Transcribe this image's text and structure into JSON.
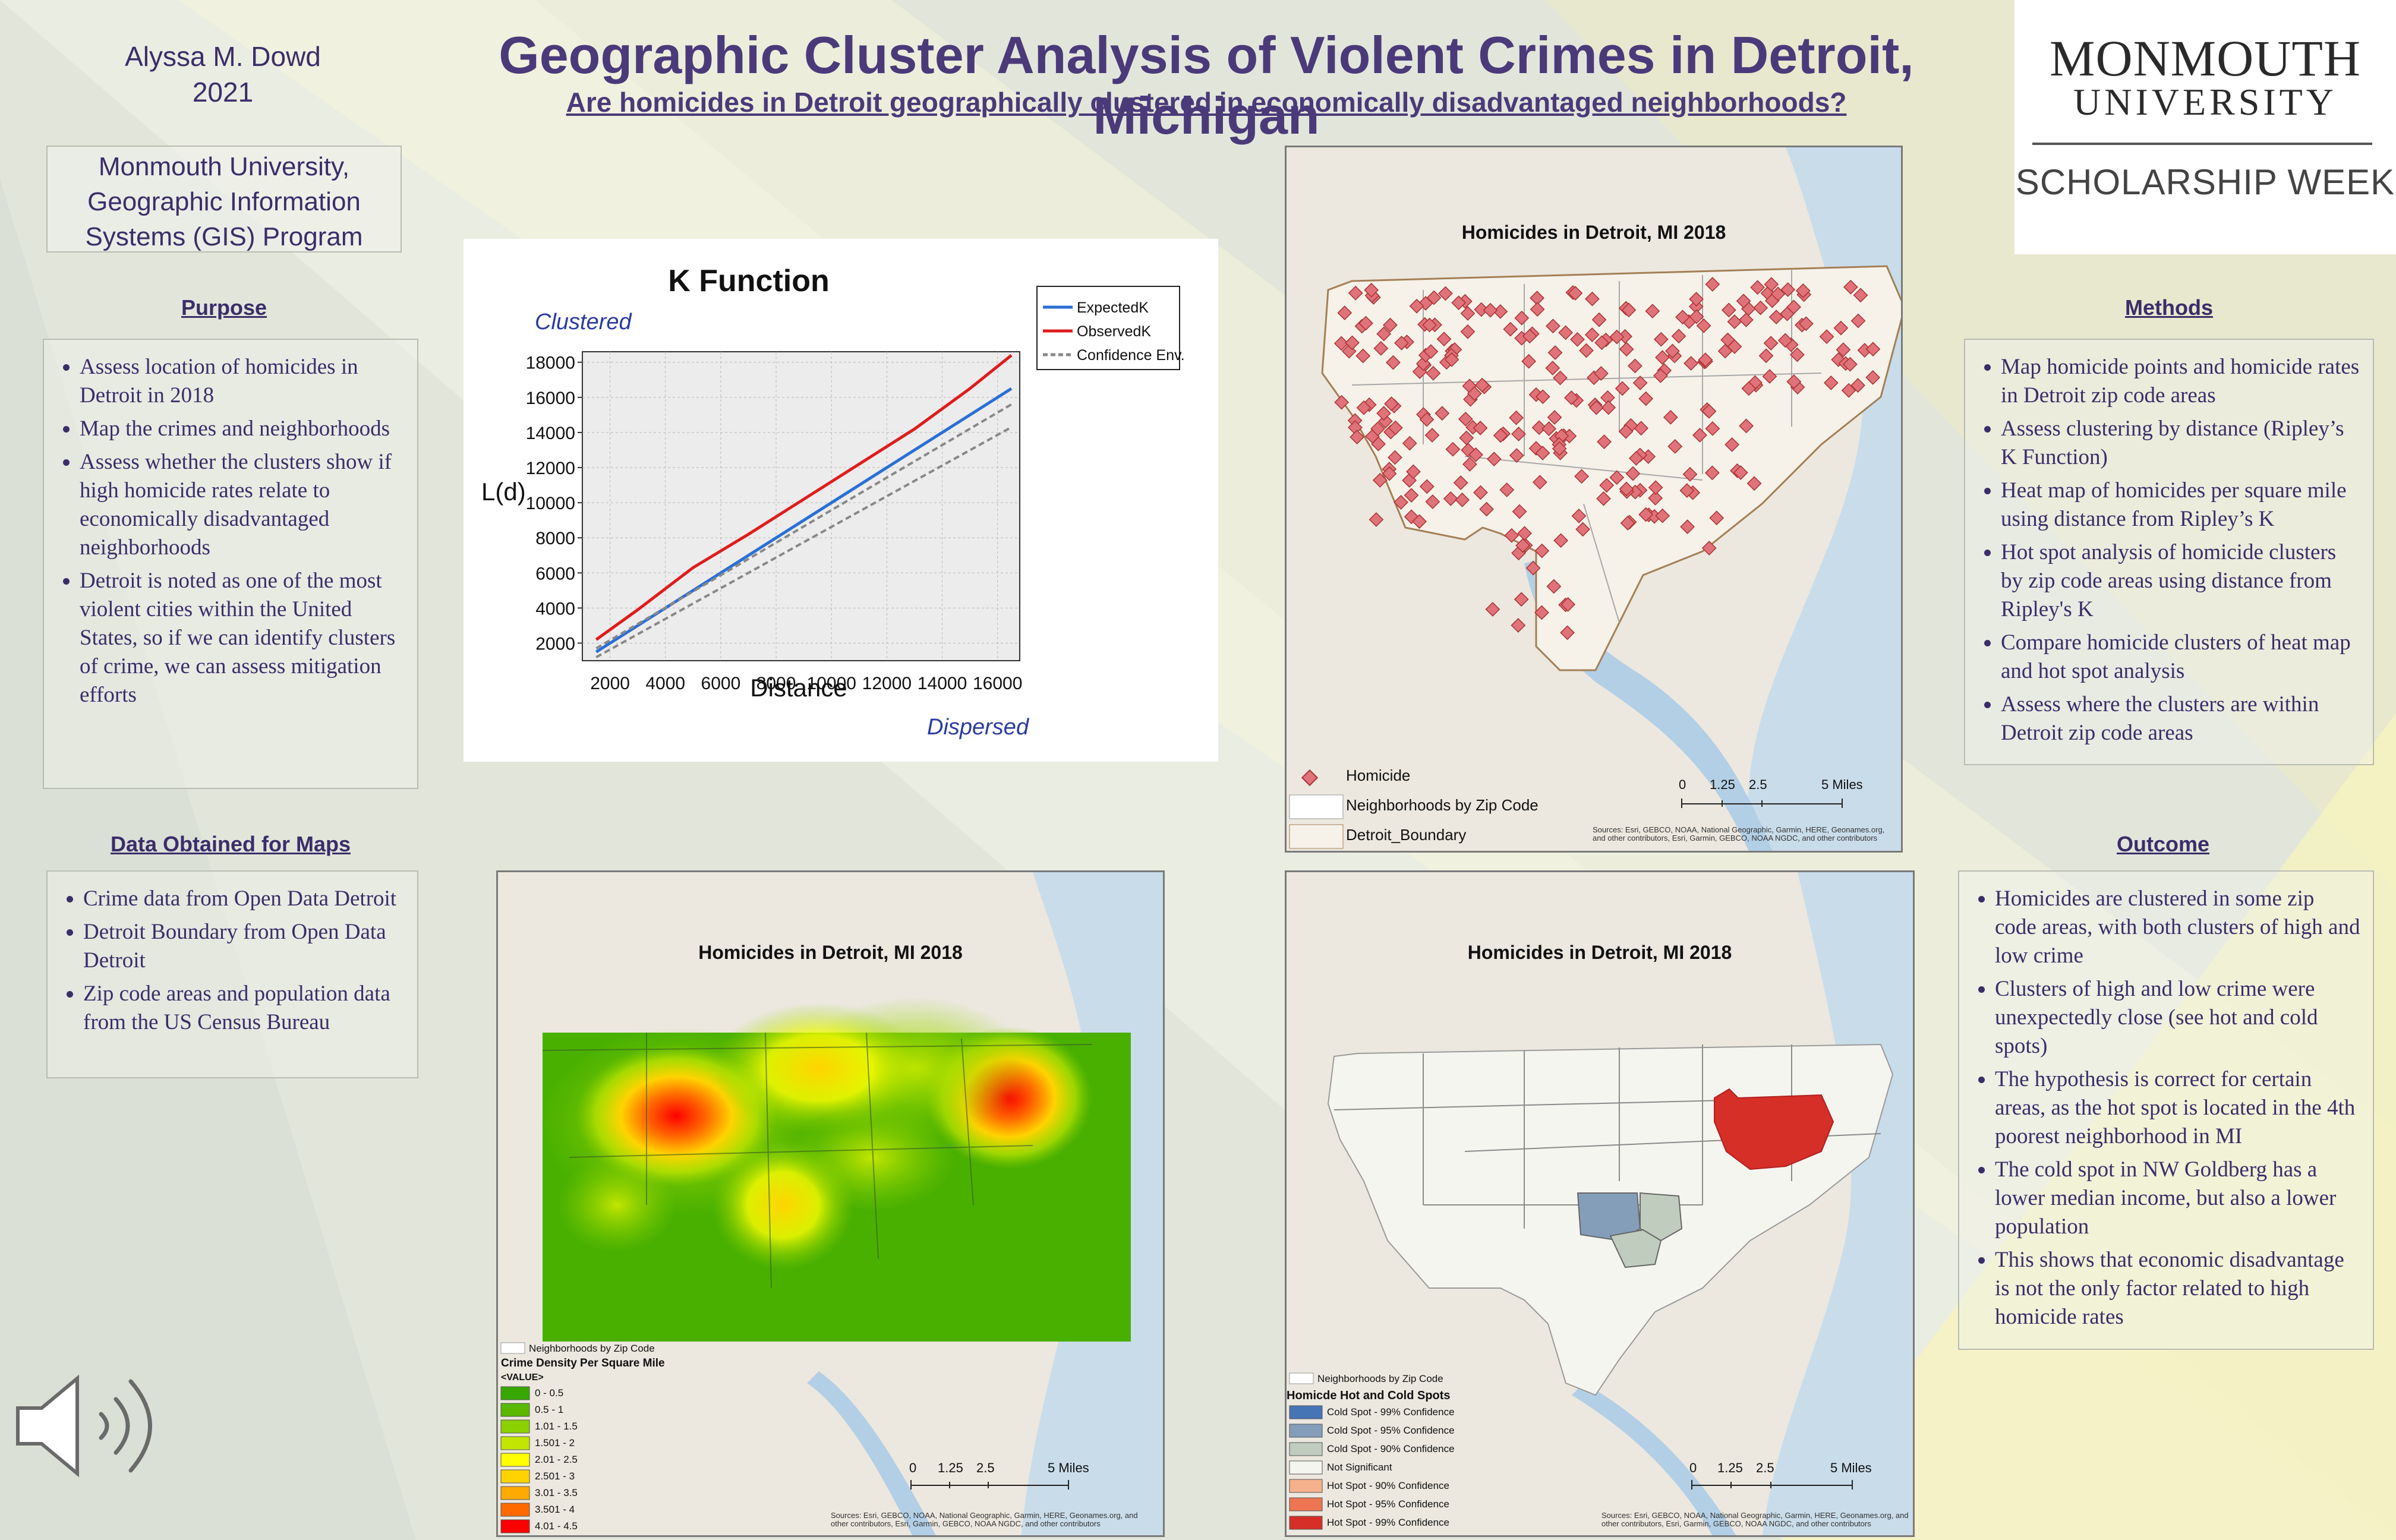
{
  "header": {
    "author_name": "Alyssa M. Dowd",
    "author_year": "2021",
    "title": "Geographic Cluster Analysis of Violent Crimes in Detroit, Michigan",
    "subtitle": "Are homicides in Detroit geographically clustered in economically disadvantaged neighborhoods?"
  },
  "logo": {
    "line1": "MONMOUTH",
    "line2": "UNIVERSITY",
    "line3": "SCHOLARSHIP WEEK"
  },
  "affiliation": {
    "line1": "Monmouth University,",
    "line2": "Geographic Information",
    "line3": "Systems (GIS) Program"
  },
  "purpose": {
    "heading": "Purpose",
    "items": [
      "Assess location of homicides in Detroit in 2018",
      "Map the crimes and neighborhoods",
      "Assess whether the clusters show if high homicide rates relate to economically disadvantaged neighborhoods",
      "Detroit is noted as one of the most violent cities within the United States, so if we can identify clusters of crime, we can assess mitigation efforts"
    ]
  },
  "data_obtained": {
    "heading": "Data Obtained  for Maps",
    "items": [
      "Crime data from  Open Data Detroit",
      "Detroit Boundary from  Open Data Detroit",
      "Zip code areas and population data from the US Census Bureau"
    ]
  },
  "methods": {
    "heading": "Methods",
    "items": [
      "Map homicide points and homicide rates in Detroit zip code areas",
      "Assess clustering by distance (Ripley’s K Function)",
      "Heat map of homicides per square mile using distance from Ripley’s K",
      "Hot spot analysis of homicide clusters by zip code areas using distance from Ripley's K",
      "Compare homicide clusters of heat map and hot spot analysis",
      "Assess where the clusters are within Detroit zip code areas"
    ]
  },
  "outcome": {
    "heading": "Outcome",
    "items": [
      "Homicides are clustered in some zip code areas, with both clusters of high and low crime",
      "Clusters of high and low crime were unexpectedly close (see hot and cold spots)",
      "The hypothesis is correct for certain areas, as the hot spot is located in the 4th poorest neighborhood in MI",
      "The cold spot in NW Goldberg has a lower median income, but also a lower population",
      "This shows that economic disadvantage is not the only factor related to high homicide rates"
    ]
  },
  "chart_data": {
    "type": "line",
    "title": "K Function",
    "xlabel": "Distance",
    "ylabel": "L(d)",
    "top_note": "Clustered",
    "bottom_note": "Dispersed",
    "xlim": [
      1000,
      16800
    ],
    "ylim": [
      1000,
      18600
    ],
    "x_ticks": [
      2000,
      4000,
      6000,
      8000,
      10000,
      12000,
      14000,
      16000
    ],
    "y_ticks": [
      2000,
      4000,
      6000,
      8000,
      10000,
      12000,
      14000,
      16000,
      18000
    ],
    "grid": true,
    "legend_position": "top-right",
    "series": [
      {
        "name": "ExpectedK",
        "color": "#2a6fd6",
        "x": [
          1500,
          16500
        ],
        "y": [
          1500,
          16500
        ]
      },
      {
        "name": "ObservedK",
        "color": "#e01c1c",
        "x": [
          1500,
          3000,
          5000,
          7000,
          9000,
          11000,
          13000,
          15000,
          16500
        ],
        "y": [
          2200,
          3900,
          6300,
          8200,
          10200,
          12200,
          14200,
          16500,
          18400
        ]
      },
      {
        "name": "Confidence Env.",
        "color": "#888888",
        "x": [
          1500,
          16500
        ],
        "y": [
          1200,
          14300
        ]
      },
      {
        "name": "Confidence Env.",
        "color": "#888888",
        "x": [
          1500,
          16500
        ],
        "y": [
          1700,
          15600
        ]
      }
    ]
  },
  "map_points": {
    "title": "Homicides in Detroit, MI 2018",
    "legend_homicide": "Homicide",
    "legend_neighborhoods": "Neighborhoods by Zip Code",
    "legend_boundary": "Detroit_Boundary",
    "scale_labels": [
      "0",
      "1.25",
      "2.5",
      "5 Miles"
    ],
    "sources": "Sources: Esri, GEBCO, NOAA, National Geographic, Garmin, HERE, Geonames.org, and other contributors, Esri, Garmin, GEBCO, NOAA NGDC, and other contributors"
  },
  "map_heat": {
    "title": "Homicides in Detroit, MI 2018",
    "legend_neighborhoods": "Neighborhoods by Zip Code",
    "legend_title": "Crime Density Per Square Mile",
    "legend_value": "<VALUE>",
    "classes": [
      {
        "label": "0 - 0.5",
        "color": "#38a800"
      },
      {
        "label": "0.5 - 1",
        "color": "#5ab800"
      },
      {
        "label": "1.01 - 1.5",
        "color": "#8bd100"
      },
      {
        "label": "1.501 - 2",
        "color": "#c2e600"
      },
      {
        "label": "2.01 - 2.5",
        "color": "#ffff00"
      },
      {
        "label": "2.501 - 3",
        "color": "#ffd300"
      },
      {
        "label": "3.01 - 3.5",
        "color": "#ffaa00"
      },
      {
        "label": "3.501 - 4",
        "color": "#ff6a00"
      },
      {
        "label": "4.01 - 4.5",
        "color": "#ff0000"
      }
    ],
    "scale_labels": [
      "0",
      "1.25",
      "2.5",
      "5 Miles"
    ],
    "sources": "Sources: Esri, GEBCO, NOAA, National Geographic, Garmin, HERE, Geonames.org, and other contributors, Esri, Garmin, GEBCO, NOAA NGDC, and other contributors"
  },
  "map_hotspot": {
    "title": "Homicides in Detroit, MI 2018",
    "legend_neighborhoods": "Neighborhoods by Zip Code",
    "legend_title": "Homicde Hot and Cold Spots",
    "classes": [
      {
        "label": "Cold Spot - 99% Confidence",
        "color": "#4575b5"
      },
      {
        "label": "Cold Spot - 95% Confidence",
        "color": "#849eba"
      },
      {
        "label": "Cold Spot - 90% Confidence",
        "color": "#c0ccbe"
      },
      {
        "label": "Not Significant",
        "color": "#f5f5f0"
      },
      {
        "label": "Hot Spot - 90% Confidence",
        "color": "#f5b18c"
      },
      {
        "label": "Hot Spot - 95% Confidence",
        "color": "#ed7551"
      },
      {
        "label": "Hot Spot - 99% Confidence",
        "color": "#d62f27"
      }
    ],
    "scale_labels": [
      "0",
      "1.25",
      "2.5",
      "5 Miles"
    ],
    "sources": "Sources: Esri, GEBCO, NOAA, National Geographic, Garmin, HERE, Geonames.org, and other contributors, Esri, Garmin, GEBCO, NOAA NGDC, and other contributors"
  }
}
